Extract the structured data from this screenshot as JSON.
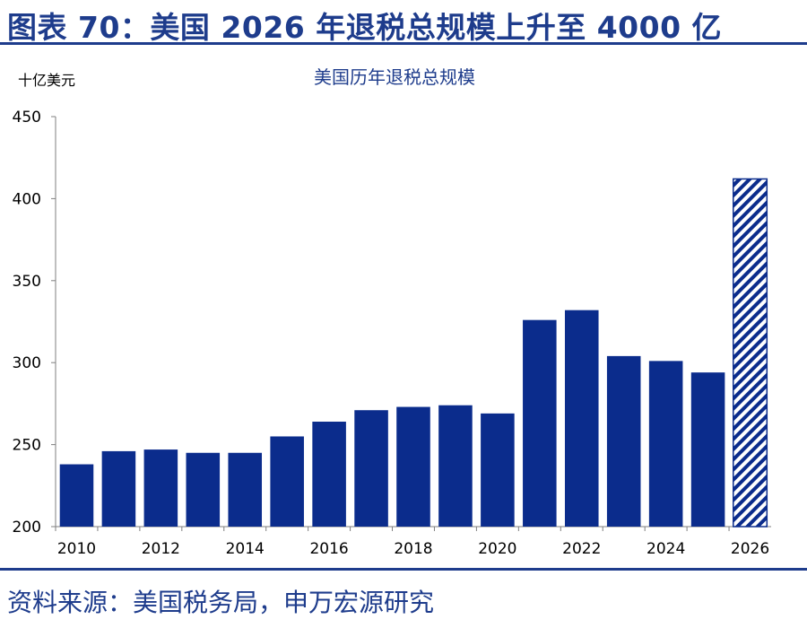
{
  "figure_title": "图表 70：美国 2026 年退税总规模上升至 4000 亿",
  "source": "资料来源：美国税务局，申万宏源研究",
  "chart_data": {
    "type": "bar",
    "title": "美国历年退税总规模",
    "unit": "十亿美元",
    "categories": [
      "2010",
      "2011",
      "2012",
      "2013",
      "2014",
      "2015",
      "2016",
      "2017",
      "2018",
      "2019",
      "2020",
      "2021",
      "2022",
      "2023",
      "2024",
      "2025",
      "2026"
    ],
    "x_tick_labels": [
      "2010",
      "",
      "2012",
      "",
      "2014",
      "",
      "2016",
      "",
      "2018",
      "",
      "2020",
      "",
      "2022",
      "",
      "2024",
      "",
      "2026"
    ],
    "values": [
      238,
      246,
      247,
      245,
      245,
      255,
      264,
      271,
      273,
      274,
      269,
      326,
      332,
      304,
      301,
      294,
      412
    ],
    "hatched_categories": [
      "2026"
    ],
    "ylim": [
      200,
      450
    ],
    "yticks": [
      200,
      250,
      300,
      350,
      400,
      450
    ],
    "grid": false,
    "legend": "none",
    "bar_color": "#0b2c8c",
    "hatch_color": "#0b2c8c"
  }
}
